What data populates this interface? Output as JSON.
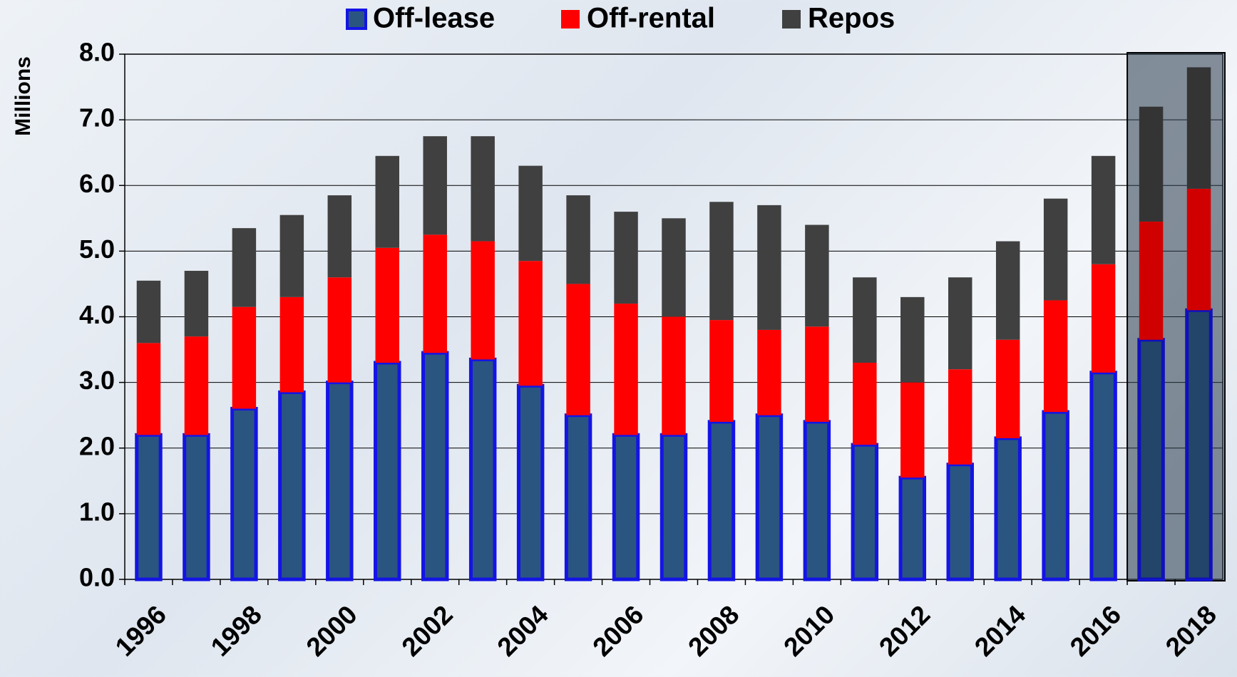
{
  "chart_data": {
    "type": "stacked_bar",
    "y_label": "Millions",
    "categories": [
      "1996",
      null,
      "1998",
      null,
      "2000",
      null,
      "2002",
      null,
      "2004",
      null,
      "2006",
      null,
      "2008",
      null,
      "2010",
      null,
      "2012",
      null,
      "2014",
      null,
      "2016",
      null,
      "2018"
    ],
    "series": [
      {
        "name": "Off-lease",
        "color": "#2a5580",
        "edge": "#1414e6",
        "values": [
          2.2,
          2.2,
          2.6,
          2.85,
          3.0,
          3.3,
          3.45,
          3.35,
          2.95,
          2.5,
          2.2,
          2.2,
          2.4,
          2.5,
          2.4,
          2.05,
          1.55,
          1.75,
          2.15,
          2.55,
          3.15,
          3.65,
          4.1
        ]
      },
      {
        "name": "Off-rental",
        "color": "#ff0000",
        "values": [
          1.4,
          1.5,
          1.55,
          1.45,
          1.6,
          1.75,
          1.8,
          1.8,
          1.9,
          2.0,
          2.0,
          1.8,
          1.55,
          1.3,
          1.45,
          1.25,
          1.45,
          1.45,
          1.5,
          1.7,
          1.65,
          1.8,
          1.85
        ]
      },
      {
        "name": "Repos",
        "color": "#404040",
        "values": [
          0.95,
          1.0,
          1.2,
          1.25,
          1.25,
          1.4,
          1.5,
          1.6,
          1.45,
          1.35,
          1.4,
          1.5,
          1.8,
          1.9,
          1.55,
          1.3,
          1.3,
          1.4,
          1.5,
          1.55,
          1.65,
          1.75,
          1.85
        ]
      }
    ],
    "ylim": [
      0,
      8
    ],
    "yticks": [
      {
        "value": 0,
        "label": "0.0"
      },
      {
        "value": 1,
        "label": "1.0"
      },
      {
        "value": 2,
        "label": "2.0"
      },
      {
        "value": 3,
        "label": "3.0"
      },
      {
        "value": 4,
        "label": "4.0"
      },
      {
        "value": 5,
        "label": "5.0"
      },
      {
        "value": 6,
        "label": "6.0"
      },
      {
        "value": 7,
        "label": "7.0"
      },
      {
        "value": 8,
        "label": "8.0"
      }
    ],
    "grid": true,
    "legend": "top"
  }
}
